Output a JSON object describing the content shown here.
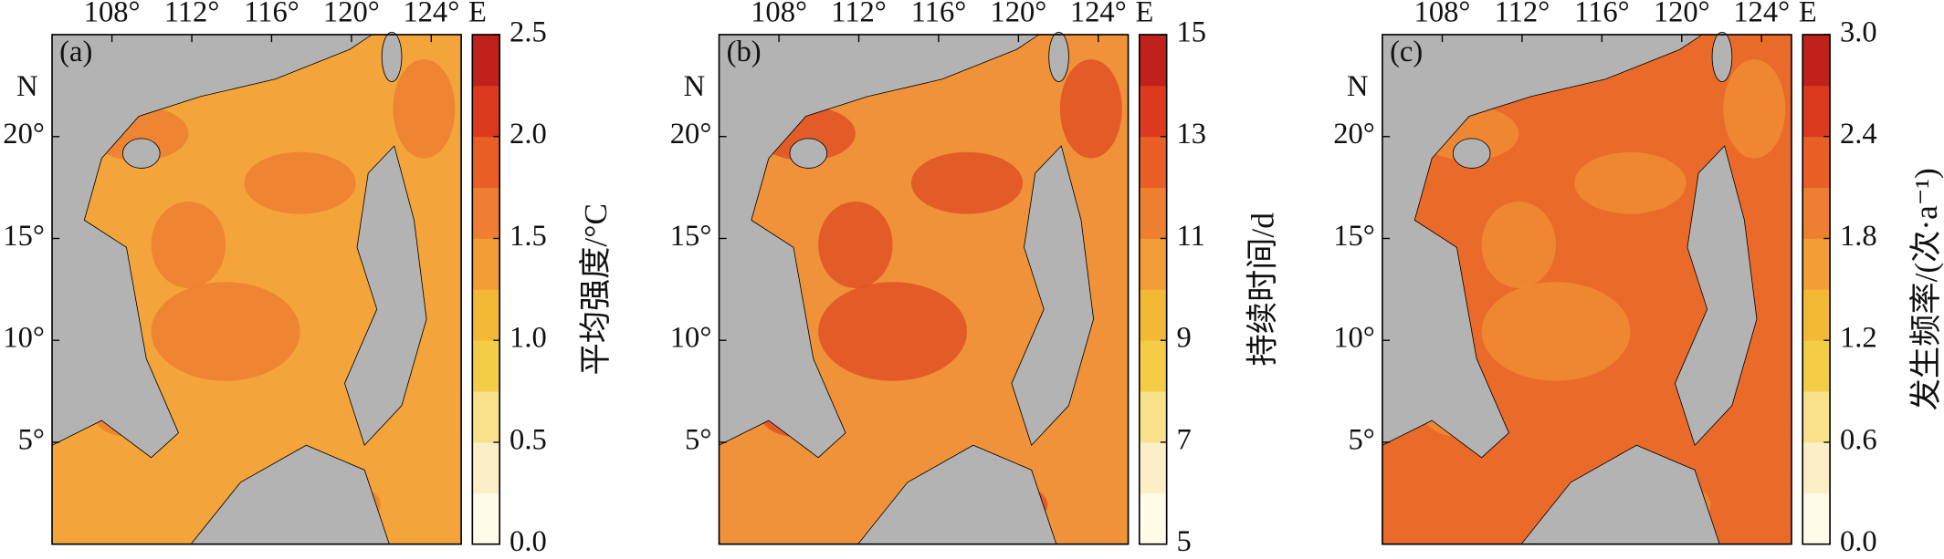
{
  "chart_data": [
    {
      "type": "map",
      "panel_label": "(a)",
      "xlabel": "E",
      "ylabel": "N",
      "xlim": [
        105,
        125.5
      ],
      "ylim": [
        0,
        25
      ],
      "xticks": [
        {
          "value": 108,
          "label": "108°"
        },
        {
          "value": 112,
          "label": "112°"
        },
        {
          "value": 116,
          "label": "116°"
        },
        {
          "value": 120,
          "label": "120°"
        },
        {
          "value": 124,
          "label": "124°"
        }
      ],
      "yticks": [
        {
          "value": 5,
          "label": "5°"
        },
        {
          "value": 10,
          "label": "10°"
        },
        {
          "value": 15,
          "label": "15°"
        },
        {
          "value": 20,
          "label": "20°"
        }
      ],
      "land_color": "#b3b3b3",
      "ocean_color": "#f3a43a",
      "accent_color": "#ee7a30",
      "colorbar": {
        "label": "平均强度/°C",
        "lim": [
          0,
          2.5
        ],
        "ticks": [
          {
            "value": 0,
            "label": "0.0"
          },
          0.5,
          {
            "value": 1,
            "label": "1.0"
          },
          1.5,
          {
            "value": 2,
            "label": "2.0"
          },
          2.5
        ],
        "colors": [
          "#fefbe8",
          "#fcefc8",
          "#f9e08a",
          "#f5cc45",
          "#f3b936",
          "#f29d35",
          "#ee7f30",
          "#e95f25",
          "#dc3a1e",
          "#c0211a"
        ]
      }
    },
    {
      "type": "map",
      "panel_label": "(b)",
      "xlabel": "E",
      "ylabel": "N",
      "xlim": [
        105,
        125.5
      ],
      "ylim": [
        0,
        25
      ],
      "xticks": [
        {
          "value": 108,
          "label": "108°"
        },
        {
          "value": 112,
          "label": "112°"
        },
        {
          "value": 116,
          "label": "116°"
        },
        {
          "value": 120,
          "label": "120°"
        },
        {
          "value": 124,
          "label": "124°"
        }
      ],
      "yticks": [
        {
          "value": 5,
          "label": "5°"
        },
        {
          "value": 10,
          "label": "10°"
        },
        {
          "value": 15,
          "label": "15°"
        },
        {
          "value": 20,
          "label": "20°"
        }
      ],
      "land_color": "#b3b3b3",
      "ocean_color": "#f0923a",
      "accent_color": "#df4a22",
      "colorbar": {
        "label": "持续时间/d",
        "lim": [
          5,
          15
        ],
        "ticks": [
          5,
          7,
          9,
          11,
          13,
          15
        ],
        "colors": [
          "#fefbe8",
          "#fcefc8",
          "#f9e08a",
          "#f5cc45",
          "#f3b936",
          "#f29d35",
          "#ee7f30",
          "#e95f25",
          "#dc3a1e",
          "#c0211a"
        ]
      }
    },
    {
      "type": "map",
      "panel_label": "(c)",
      "xlabel": "E",
      "ylabel": "N",
      "xlim": [
        105,
        125.5
      ],
      "ylim": [
        0,
        25
      ],
      "xticks": [
        {
          "value": 108,
          "label": "108°"
        },
        {
          "value": 112,
          "label": "112°"
        },
        {
          "value": 116,
          "label": "116°"
        },
        {
          "value": 120,
          "label": "120°"
        },
        {
          "value": 124,
          "label": "124°"
        }
      ],
      "yticks": [
        {
          "value": 5,
          "label": "5°"
        },
        {
          "value": 10,
          "label": "10°"
        },
        {
          "value": 15,
          "label": "15°"
        },
        {
          "value": 20,
          "label": "20°"
        }
      ],
      "land_color": "#b3b3b3",
      "ocean_color": "#ea6a2a",
      "accent_color": "#f09036",
      "colorbar": {
        "label": "发生频率/(次·a⁻¹)",
        "lim": [
          0,
          3
        ],
        "ticks": [
          {
            "value": 0,
            "label": "0.0"
          },
          0.6,
          1.2,
          1.8,
          2.4,
          {
            "value": 3,
            "label": "3.0"
          }
        ],
        "colors": [
          "#fefbe8",
          "#fcefc8",
          "#f9e08a",
          "#f5cc45",
          "#f3b936",
          "#f29d35",
          "#ee7f30",
          "#e95f25",
          "#dc3a1e",
          "#c0211a"
        ]
      }
    }
  ]
}
